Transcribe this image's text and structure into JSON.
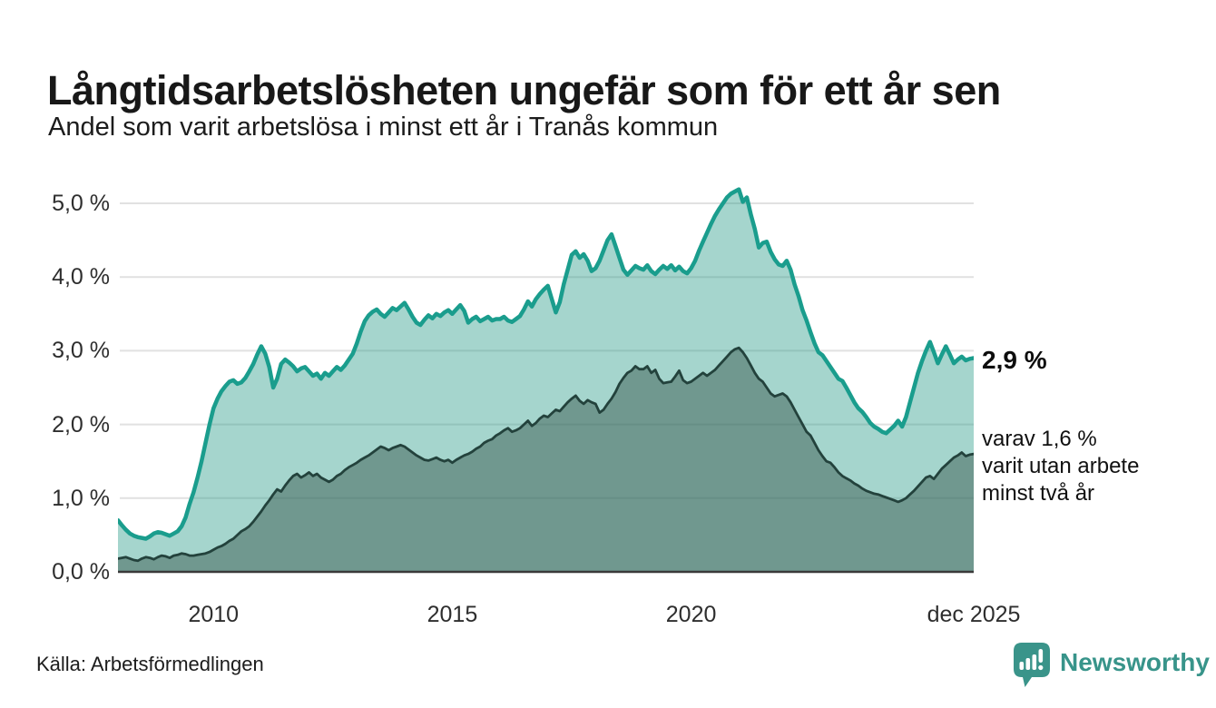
{
  "header": {
    "title": "Långtidsarbetslösheten ungefär som för ett år sen",
    "subtitle": "Andel som varit arbetslösa i minst ett år i Tranås kommun"
  },
  "annotations": {
    "latest_total": "2,9 %",
    "sub_lines": [
      "varav 1,6 %",
      "varit utan arbete",
      "minst två år"
    ]
  },
  "footer": {
    "source": "Källa: Arbetsförmedlingen",
    "brand": "Newsworthy"
  },
  "chart_data": {
    "type": "area",
    "title": "Långtidsarbetslösheten ungefär som för ett år sen",
    "subtitle": "Andel som varit arbetslösa i minst ett år i Tranås kommun",
    "unit": "%",
    "x_start": "2008-01",
    "x_end": "2025-12",
    "points_per_year": 12,
    "ylim": [
      0,
      5.35
    ],
    "grid": true,
    "legend_position": "none",
    "colors": {
      "grid": "#e1e1e1",
      "axis": "#3a3a3a",
      "accent_teal": "#1a9d8d",
      "dark_outline": "#23423c"
    },
    "y_ticks": [
      "0,0 %",
      "1,0 %",
      "2,0 %",
      "3,0 %",
      "4,0 %",
      "5,0 %"
    ],
    "x_ticks": [
      {
        "label": "2010",
        "month_index": 24
      },
      {
        "label": "2015",
        "month_index": 84
      },
      {
        "label": "2020",
        "month_index": 144
      },
      {
        "label": "dec 2025",
        "month_index": 215
      }
    ],
    "series": [
      {
        "name": "Andel arbetslösa minst ett år",
        "latest_value": 2.9,
        "line_color": "#1a9d8d",
        "line_width": 4.5,
        "fill_color": "rgba(30,150,130,0.40)",
        "values": [
          0.7,
          0.63,
          0.57,
          0.52,
          0.49,
          0.47,
          0.46,
          0.45,
          0.48,
          0.52,
          0.54,
          0.53,
          0.51,
          0.49,
          0.52,
          0.55,
          0.62,
          0.74,
          0.92,
          1.08,
          1.28,
          1.5,
          1.75,
          2.0,
          2.22,
          2.35,
          2.45,
          2.52,
          2.58,
          2.6,
          2.55,
          2.57,
          2.63,
          2.72,
          2.82,
          2.95,
          3.06,
          2.96,
          2.78,
          2.5,
          2.62,
          2.82,
          2.88,
          2.84,
          2.79,
          2.72,
          2.76,
          2.78,
          2.72,
          2.66,
          2.69,
          2.62,
          2.7,
          2.66,
          2.72,
          2.78,
          2.74,
          2.8,
          2.88,
          2.96,
          3.1,
          3.26,
          3.4,
          3.48,
          3.53,
          3.56,
          3.5,
          3.46,
          3.52,
          3.58,
          3.55,
          3.6,
          3.65,
          3.56,
          3.46,
          3.38,
          3.35,
          3.42,
          3.48,
          3.44,
          3.5,
          3.47,
          3.52,
          3.55,
          3.5,
          3.56,
          3.62,
          3.54,
          3.38,
          3.43,
          3.46,
          3.4,
          3.43,
          3.46,
          3.41,
          3.43,
          3.43,
          3.46,
          3.41,
          3.39,
          3.43,
          3.47,
          3.56,
          3.67,
          3.6,
          3.7,
          3.77,
          3.83,
          3.88,
          3.7,
          3.52,
          3.66,
          3.9,
          4.1,
          4.3,
          4.35,
          4.26,
          4.31,
          4.22,
          4.08,
          4.12,
          4.22,
          4.36,
          4.5,
          4.58,
          4.42,
          4.26,
          4.1,
          4.03,
          4.09,
          4.15,
          4.12,
          4.1,
          4.16,
          4.08,
          4.04,
          4.1,
          4.15,
          4.11,
          4.16,
          4.09,
          4.14,
          4.08,
          4.05,
          4.12,
          4.22,
          4.36,
          4.48,
          4.6,
          4.72,
          4.83,
          4.92,
          5.0,
          5.08,
          5.13,
          5.16,
          5.19,
          5.02,
          5.08,
          4.85,
          4.65,
          4.4,
          4.46,
          4.48,
          4.34,
          4.24,
          4.17,
          4.15,
          4.22,
          4.1,
          3.9,
          3.74,
          3.55,
          3.41,
          3.25,
          3.1,
          2.98,
          2.94,
          2.86,
          2.78,
          2.7,
          2.62,
          2.59,
          2.5,
          2.4,
          2.3,
          2.22,
          2.17,
          2.1,
          2.02,
          1.97,
          1.94,
          1.9,
          1.88,
          1.93,
          1.98,
          2.05,
          1.97,
          2.1,
          2.3,
          2.5,
          2.7,
          2.86,
          3.0,
          3.12,
          2.98,
          2.83,
          2.95,
          3.06,
          2.95,
          2.83,
          2.88,
          2.92,
          2.87,
          2.89,
          2.9
        ]
      },
      {
        "name": "varav utan arbete minst två år",
        "latest_value": 1.6,
        "line_color": "#23423c",
        "line_width": 2.8,
        "fill_color": "rgba(59,91,81,0.50)",
        "values": [
          0.18,
          0.19,
          0.2,
          0.18,
          0.16,
          0.15,
          0.18,
          0.2,
          0.19,
          0.17,
          0.2,
          0.22,
          0.21,
          0.19,
          0.22,
          0.23,
          0.25,
          0.24,
          0.22,
          0.22,
          0.23,
          0.24,
          0.25,
          0.27,
          0.3,
          0.33,
          0.35,
          0.38,
          0.42,
          0.45,
          0.5,
          0.55,
          0.58,
          0.62,
          0.68,
          0.75,
          0.82,
          0.9,
          0.97,
          1.05,
          1.12,
          1.09,
          1.17,
          1.24,
          1.3,
          1.33,
          1.28,
          1.31,
          1.35,
          1.3,
          1.33,
          1.28,
          1.25,
          1.22,
          1.25,
          1.3,
          1.33,
          1.38,
          1.42,
          1.45,
          1.48,
          1.52,
          1.55,
          1.58,
          1.62,
          1.66,
          1.7,
          1.68,
          1.65,
          1.68,
          1.7,
          1.72,
          1.7,
          1.66,
          1.62,
          1.58,
          1.55,
          1.52,
          1.51,
          1.53,
          1.55,
          1.52,
          1.5,
          1.52,
          1.48,
          1.52,
          1.55,
          1.58,
          1.6,
          1.63,
          1.67,
          1.7,
          1.75,
          1.78,
          1.8,
          1.85,
          1.88,
          1.92,
          1.95,
          1.9,
          1.92,
          1.95,
          2.0,
          2.05,
          1.98,
          2.02,
          2.08,
          2.12,
          2.1,
          2.15,
          2.2,
          2.18,
          2.24,
          2.3,
          2.35,
          2.39,
          2.32,
          2.28,
          2.33,
          2.3,
          2.28,
          2.16,
          2.2,
          2.28,
          2.35,
          2.44,
          2.55,
          2.63,
          2.7,
          2.73,
          2.79,
          2.75,
          2.75,
          2.79,
          2.7,
          2.74,
          2.62,
          2.56,
          2.57,
          2.58,
          2.65,
          2.73,
          2.6,
          2.56,
          2.58,
          2.62,
          2.66,
          2.7,
          2.66,
          2.7,
          2.74,
          2.8,
          2.86,
          2.92,
          2.98,
          3.02,
          3.04,
          2.98,
          2.9,
          2.8,
          2.7,
          2.62,
          2.58,
          2.5,
          2.42,
          2.38,
          2.4,
          2.42,
          2.38,
          2.3,
          2.2,
          2.1,
          2.0,
          1.9,
          1.85,
          1.75,
          1.65,
          1.57,
          1.5,
          1.48,
          1.42,
          1.35,
          1.3,
          1.27,
          1.24,
          1.2,
          1.17,
          1.13,
          1.1,
          1.08,
          1.06,
          1.05,
          1.03,
          1.01,
          0.99,
          0.97,
          0.95,
          0.97,
          1.0,
          1.05,
          1.1,
          1.16,
          1.22,
          1.28,
          1.3,
          1.26,
          1.33,
          1.4,
          1.45,
          1.5,
          1.55,
          1.58,
          1.62,
          1.57,
          1.59,
          1.6
        ]
      }
    ]
  }
}
